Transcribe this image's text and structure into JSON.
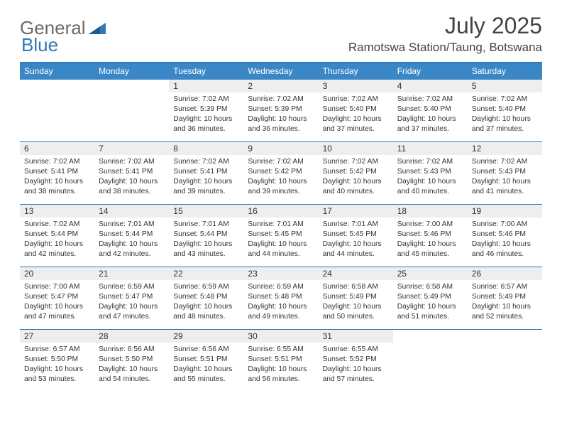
{
  "logo": {
    "text1": "General",
    "text2": "Blue"
  },
  "title": "July 2025",
  "location": "Ramotswa Station/Taung, Botswana",
  "colors": {
    "header_bg": "#3a87c8",
    "border": "#2f79b9",
    "daynum_bg": "#eeeeee",
    "text": "#333333"
  },
  "day_headers": [
    "Sunday",
    "Monday",
    "Tuesday",
    "Wednesday",
    "Thursday",
    "Friday",
    "Saturday"
  ],
  "weeks": [
    [
      {
        "empty": true
      },
      {
        "empty": true
      },
      {
        "n": "1",
        "sunrise": "7:02 AM",
        "sunset": "5:39 PM",
        "daylight": "10 hours and 36 minutes."
      },
      {
        "n": "2",
        "sunrise": "7:02 AM",
        "sunset": "5:39 PM",
        "daylight": "10 hours and 36 minutes."
      },
      {
        "n": "3",
        "sunrise": "7:02 AM",
        "sunset": "5:40 PM",
        "daylight": "10 hours and 37 minutes."
      },
      {
        "n": "4",
        "sunrise": "7:02 AM",
        "sunset": "5:40 PM",
        "daylight": "10 hours and 37 minutes."
      },
      {
        "n": "5",
        "sunrise": "7:02 AM",
        "sunset": "5:40 PM",
        "daylight": "10 hours and 37 minutes."
      }
    ],
    [
      {
        "n": "6",
        "sunrise": "7:02 AM",
        "sunset": "5:41 PM",
        "daylight": "10 hours and 38 minutes."
      },
      {
        "n": "7",
        "sunrise": "7:02 AM",
        "sunset": "5:41 PM",
        "daylight": "10 hours and 38 minutes."
      },
      {
        "n": "8",
        "sunrise": "7:02 AM",
        "sunset": "5:41 PM",
        "daylight": "10 hours and 39 minutes."
      },
      {
        "n": "9",
        "sunrise": "7:02 AM",
        "sunset": "5:42 PM",
        "daylight": "10 hours and 39 minutes."
      },
      {
        "n": "10",
        "sunrise": "7:02 AM",
        "sunset": "5:42 PM",
        "daylight": "10 hours and 40 minutes."
      },
      {
        "n": "11",
        "sunrise": "7:02 AM",
        "sunset": "5:43 PM",
        "daylight": "10 hours and 40 minutes."
      },
      {
        "n": "12",
        "sunrise": "7:02 AM",
        "sunset": "5:43 PM",
        "daylight": "10 hours and 41 minutes."
      }
    ],
    [
      {
        "n": "13",
        "sunrise": "7:02 AM",
        "sunset": "5:44 PM",
        "daylight": "10 hours and 42 minutes."
      },
      {
        "n": "14",
        "sunrise": "7:01 AM",
        "sunset": "5:44 PM",
        "daylight": "10 hours and 42 minutes."
      },
      {
        "n": "15",
        "sunrise": "7:01 AM",
        "sunset": "5:44 PM",
        "daylight": "10 hours and 43 minutes."
      },
      {
        "n": "16",
        "sunrise": "7:01 AM",
        "sunset": "5:45 PM",
        "daylight": "10 hours and 44 minutes."
      },
      {
        "n": "17",
        "sunrise": "7:01 AM",
        "sunset": "5:45 PM",
        "daylight": "10 hours and 44 minutes."
      },
      {
        "n": "18",
        "sunrise": "7:00 AM",
        "sunset": "5:46 PM",
        "daylight": "10 hours and 45 minutes."
      },
      {
        "n": "19",
        "sunrise": "7:00 AM",
        "sunset": "5:46 PM",
        "daylight": "10 hours and 46 minutes."
      }
    ],
    [
      {
        "n": "20",
        "sunrise": "7:00 AM",
        "sunset": "5:47 PM",
        "daylight": "10 hours and 47 minutes."
      },
      {
        "n": "21",
        "sunrise": "6:59 AM",
        "sunset": "5:47 PM",
        "daylight": "10 hours and 47 minutes."
      },
      {
        "n": "22",
        "sunrise": "6:59 AM",
        "sunset": "5:48 PM",
        "daylight": "10 hours and 48 minutes."
      },
      {
        "n": "23",
        "sunrise": "6:59 AM",
        "sunset": "5:48 PM",
        "daylight": "10 hours and 49 minutes."
      },
      {
        "n": "24",
        "sunrise": "6:58 AM",
        "sunset": "5:49 PM",
        "daylight": "10 hours and 50 minutes."
      },
      {
        "n": "25",
        "sunrise": "6:58 AM",
        "sunset": "5:49 PM",
        "daylight": "10 hours and 51 minutes."
      },
      {
        "n": "26",
        "sunrise": "6:57 AM",
        "sunset": "5:49 PM",
        "daylight": "10 hours and 52 minutes."
      }
    ],
    [
      {
        "n": "27",
        "sunrise": "6:57 AM",
        "sunset": "5:50 PM",
        "daylight": "10 hours and 53 minutes."
      },
      {
        "n": "28",
        "sunrise": "6:56 AM",
        "sunset": "5:50 PM",
        "daylight": "10 hours and 54 minutes."
      },
      {
        "n": "29",
        "sunrise": "6:56 AM",
        "sunset": "5:51 PM",
        "daylight": "10 hours and 55 minutes."
      },
      {
        "n": "30",
        "sunrise": "6:55 AM",
        "sunset": "5:51 PM",
        "daylight": "10 hours and 56 minutes."
      },
      {
        "n": "31",
        "sunrise": "6:55 AM",
        "sunset": "5:52 PM",
        "daylight": "10 hours and 57 minutes."
      },
      {
        "empty": true
      },
      {
        "empty": true
      }
    ]
  ],
  "labels": {
    "sunrise": "Sunrise: ",
    "sunset": "Sunset: ",
    "daylight": "Daylight: "
  }
}
